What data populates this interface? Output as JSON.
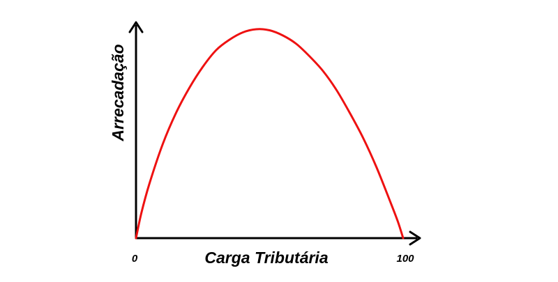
{
  "chart_data": {
    "type": "line",
    "xlabel": "Carga Tributária",
    "ylabel": "Arrecadação",
    "x_ticks": [
      "0",
      "100"
    ],
    "xlim": [
      0,
      100
    ],
    "grid": false,
    "legend": "none",
    "series": [
      {
        "color": "#ee1111",
        "x": [
          0,
          2,
          5,
          10,
          15,
          20,
          25,
          30,
          35,
          40,
          45,
          50,
          55,
          60,
          65,
          70,
          75,
          80,
          85,
          90,
          95,
          98,
          100
        ],
        "y": [
          0,
          0.12,
          0.26,
          0.45,
          0.6,
          0.72,
          0.82,
          0.9,
          0.95,
          0.985,
          1.0,
          0.995,
          0.97,
          0.93,
          0.87,
          0.8,
          0.71,
          0.6,
          0.48,
          0.34,
          0.18,
          0.08,
          0
        ]
      }
    ]
  },
  "colors": {
    "axis": "#000000",
    "curve": "#ee1111",
    "background": "#ffffff"
  }
}
